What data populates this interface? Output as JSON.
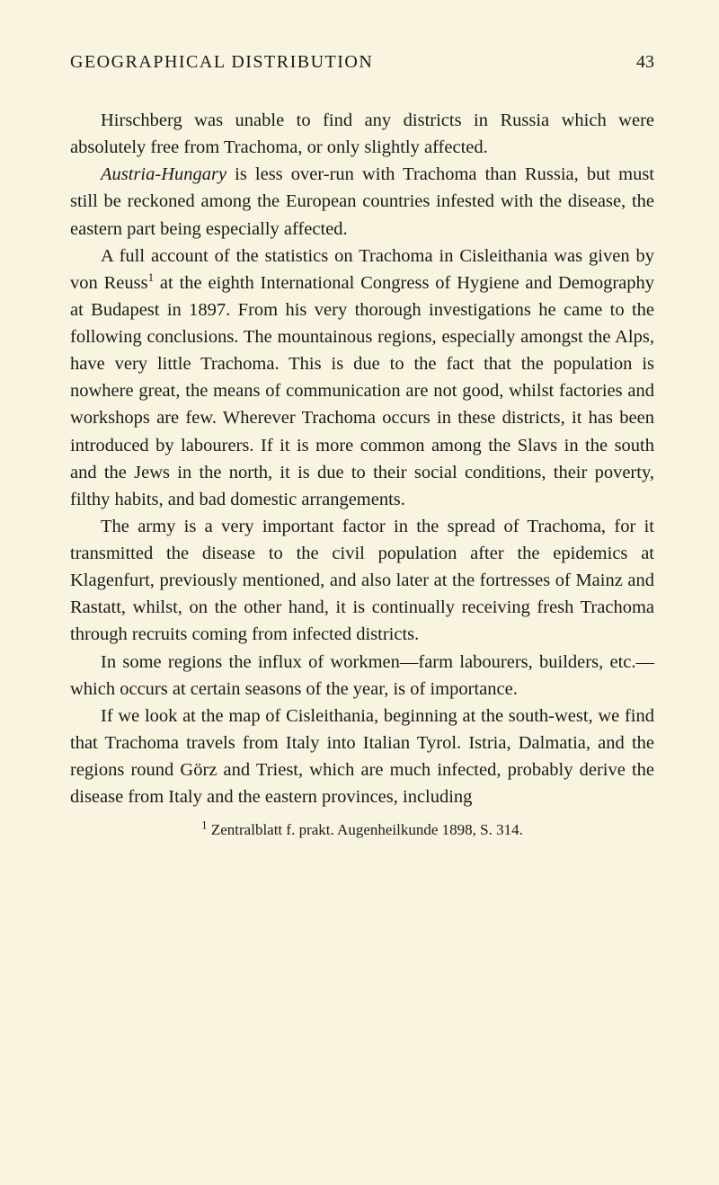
{
  "page": {
    "running_title": "GEOGRAPHICAL DISTRIBUTION",
    "page_number": "43",
    "background_color": "#f8f4e0",
    "text_color": "#1a1a1a",
    "font_family": "Georgia, Times New Roman, serif",
    "body_fontsize": 20.5,
    "header_fontsize": 20,
    "footnote_fontsize": 17,
    "line_height": 1.47,
    "text_indent": 34
  },
  "paragraphs": {
    "p1": "Hirschberg was unable to find any districts in Russia which were absolutely free from Trachoma, or only slightly affected.",
    "p2_italic": "Austria-Hungary",
    "p2_rest": " is less over-run with Trachoma than Russia, but must still be reckoned among the European countries infested with the disease, the eastern part being especially affected.",
    "p3_a": "A full account of the statistics on Trachoma in Cisleithania was given by von Reuss",
    "p3_sup": "1",
    "p3_b": " at the eighth International Congress of Hygiene and Demography at Budapest in 1897. From his very thorough investigations he came to the following conclusions. The mountainous regions, especially amongst the Alps, have very little Trachoma. This is due to the fact that the population is nowhere great, the means of communication are not good, whilst factories and workshops are few. Wherever Trachoma occurs in these districts, it has been intro­duced by labourers. If it is more common among the Slavs in the south and the Jews in the north, it is due to their social conditions, their poverty, filthy habits, and bad domestic arrangements.",
    "p4": "The army is a very important factor in the spread of Trachoma, for it transmitted the disease to the civil population after the epidemics at Klagenfurt, previously mentioned, and also later at the fortresses of Mainz and Rastatt, whilst, on the other hand, it is continually receiving fresh Trachoma through recruits coming from infected districts.",
    "p5": "In some regions the influx of workmen—farm labourers, builders, etc.—which occurs at certain seasons of the year, is of importance.",
    "p6": "If we look at the map of Cisleithania, beginning at the south-west, we find that Trachoma travels from Italy into Italian Tyrol. Istria, Dalmatia, and the regions round Görz and Triest, which are much infected, probably derive the disease from Italy and the eastern provinces, including"
  },
  "footnote": {
    "marker": "1",
    "text": " Zentralblatt f. prakt. Augenheilkunde 1898, S. 314."
  }
}
